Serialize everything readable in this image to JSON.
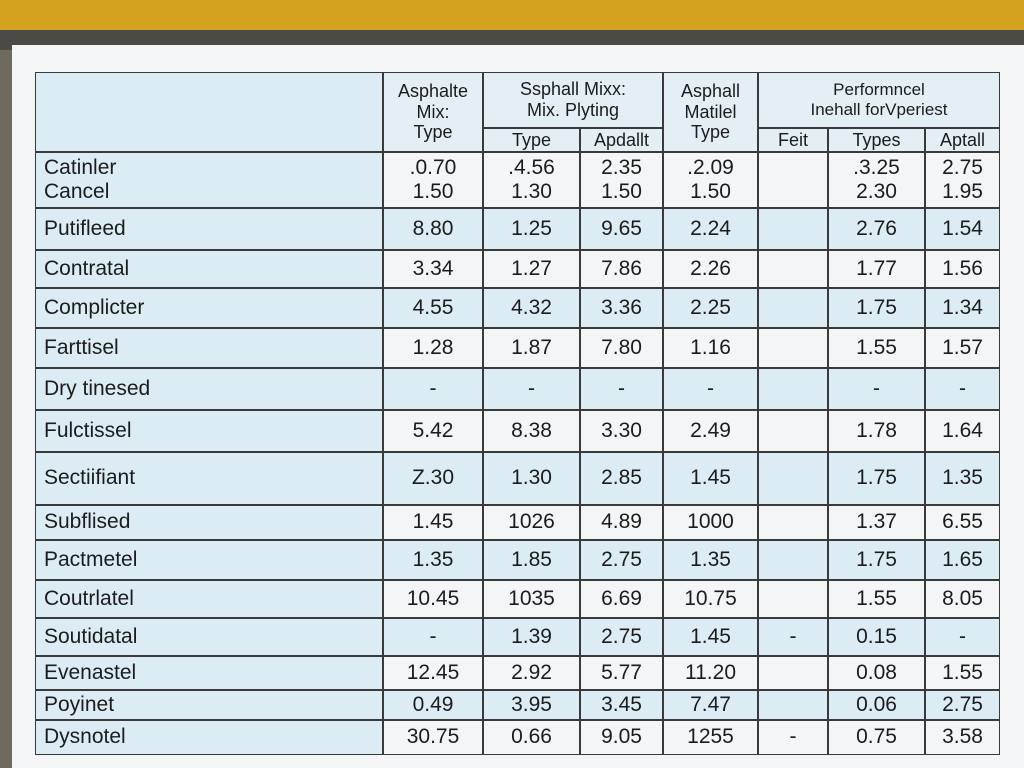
{
  "table": {
    "header": {
      "col1": "Asphalte\nMix:\nType",
      "group1": "Ssphall Mixx:\nMix. Plyting",
      "group1_sub": [
        "Type",
        "Apdallt"
      ],
      "col4": "Asphall\nMatilel\nType",
      "group2": "Performncel\nInehall forVperiest",
      "group2_sub": [
        "Feit",
        "Types",
        "Aptall"
      ]
    },
    "rows": [
      [
        "Catinler\nCancel",
        ".0.70\n1.50",
        ".4.56\n1.30",
        "2.35\n1.50",
        ".2.09\n1.50",
        null,
        ".3.25\n2.30",
        "2.75\n1.95"
      ],
      [
        "Putifleed",
        "8.80",
        "1.25",
        "9.65",
        "2.24",
        null,
        "2.76",
        "1.54"
      ],
      [
        "Contratal",
        "3.34",
        "1.27",
        "7.86",
        "2.26",
        null,
        "1.77",
        "1.56"
      ],
      [
        "Complicter",
        "4.55",
        "4.32",
        "3.36",
        "2.25",
        null,
        "1.75",
        "1.34"
      ],
      [
        "Farttisel",
        "1.28",
        "1.87",
        "7.80",
        "1.16",
        null,
        "1.55",
        "1.57"
      ],
      [
        "Dry tinesed",
        "-",
        "-",
        "-",
        "-",
        null,
        "-",
        "-"
      ],
      [
        "Fulctissel",
        "5.42",
        "8.38",
        "3.30",
        "2.49",
        null,
        "1.78",
        "1.64"
      ],
      [
        "Sectiifiant",
        "Z.30",
        "1.30",
        "2.85",
        "1.45",
        null,
        "1.75",
        "1.35"
      ],
      [
        "Subflised",
        "1.45",
        "1026",
        "4.89",
        "1000",
        null,
        "1.37",
        "6.55"
      ],
      [
        "Pactmetel",
        "1.35",
        "1.85",
        "2.75",
        "1.35",
        null,
        "1.75",
        "1.65"
      ],
      [
        "Coutrlatel",
        "10.45",
        "1035",
        "6.69",
        "10.75",
        null,
        "1.55",
        "8.05"
      ],
      [
        "Soutidatal",
        "-",
        "1.39",
        "2.75",
        "1.45",
        "-",
        "0.15",
        "-"
      ],
      [
        "Evenastel",
        "12.45",
        "2.92",
        "5.77",
        "11.20",
        null,
        "0.08",
        "1.55"
      ],
      [
        "Poyinet",
        "0.49",
        "3.95",
        "3.45",
        "7.47",
        null,
        "0.06",
        "2.75"
      ],
      [
        "Dysnotel",
        "30.75",
        "0.66",
        "9.05",
        "1255",
        "-",
        "0.75",
        "3.58"
      ]
    ]
  }
}
